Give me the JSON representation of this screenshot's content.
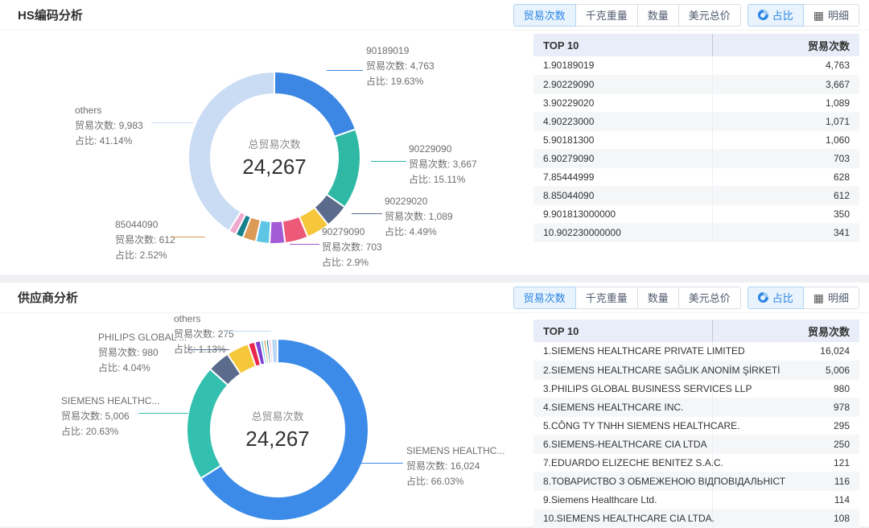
{
  "tabs": {
    "trade_count": "贸易次数",
    "kg_weight": "千克重量",
    "quantity": "数量",
    "usd_total": "美元总价",
    "share": "占比",
    "detail": "明细",
    "detail_icon_glyph": "▦"
  },
  "sections": [
    {
      "title": "HS编码分析",
      "center": {
        "label": "总贸易次数",
        "value": "24,267"
      },
      "chart_data": {
        "type": "pie",
        "title": "HS编码分析 贸易次数占比",
        "total": 24267,
        "slices": [
          {
            "name": "90189019",
            "value": 4763,
            "percent": "19.63%",
            "color": "#3d87e4"
          },
          {
            "name": "90229090",
            "value": 3667,
            "percent": "15.11%",
            "color": "#2fb8a4"
          },
          {
            "name": "90229020",
            "value": 1089,
            "percent": "4.49%",
            "color": "#5a6b8c"
          },
          {
            "name": "90223000",
            "value": 1071,
            "color": "#f6c73b"
          },
          {
            "name": "90181300",
            "value": 1060,
            "color": "#ed5a78"
          },
          {
            "name": "90279090",
            "value": 703,
            "percent": "2.9%",
            "color": "#a35bd6"
          },
          {
            "name": "85444999",
            "value": 628,
            "color": "#5fc5e5"
          },
          {
            "name": "85044090",
            "value": 612,
            "percent": "2.52%",
            "color": "#db9a55"
          },
          {
            "name": "901813000000",
            "value": 350,
            "color": "#17818d"
          },
          {
            "name": "902230000000",
            "value": 341,
            "color": "#f0a8ce"
          },
          {
            "name": "others",
            "value": 9983,
            "percent": "41.14%",
            "color": "#cadcf4"
          }
        ]
      },
      "callouts": [
        {
          "title": "90189019",
          "count": "贸易次数: 4,763",
          "share": "占比: 19.63%"
        },
        {
          "title": "others",
          "count": "贸易次数: 9,983",
          "share": "占比: 41.14%"
        },
        {
          "title": "90229090",
          "count": "贸易次数: 3,667",
          "share": "占比: 15.11%"
        },
        {
          "title": "90229020",
          "count": "贸易次数: 1,089",
          "share": "占比: 4.49%"
        },
        {
          "title": "90279090",
          "count": "贸易次数: 703",
          "share": "占比: 2.9%"
        },
        {
          "title": "85044090",
          "count": "贸易次数: 612",
          "share": "占比: 2.52%"
        }
      ],
      "table": {
        "headers": [
          "TOP 10",
          "贸易次数"
        ],
        "rows": [
          {
            "name": "1.90189019",
            "value": "4,763"
          },
          {
            "name": "2.90229090",
            "value": "3,667"
          },
          {
            "name": "3.90229020",
            "value": "1,089"
          },
          {
            "name": "4.90223000",
            "value": "1,071"
          },
          {
            "name": "5.90181300",
            "value": "1,060"
          },
          {
            "name": "6.90279090",
            "value": "703"
          },
          {
            "name": "7.85444999",
            "value": "628"
          },
          {
            "name": "8.85044090",
            "value": "612"
          },
          {
            "name": "9.901813000000",
            "value": "350"
          },
          {
            "name": "10.902230000000",
            "value": "341"
          }
        ]
      }
    },
    {
      "title": "供应商分析",
      "center": {
        "label": "总贸易次数",
        "value": "24,267"
      },
      "chart_data": {
        "type": "pie",
        "title": "供应商分析 贸易次数占比",
        "total": 24267,
        "slices": [
          {
            "name": "SIEMENS HEALTHCARE PRIVATE LIMITED",
            "value": 16024,
            "percent": "66.03%",
            "color": "#3d8be8"
          },
          {
            "name": "SIEMENS HEALTHCARE SAĞLIK ANONİM ŞİRKETİ",
            "value": 5006,
            "percent": "20.63%",
            "color": "#33c0ae"
          },
          {
            "name": "PHILIPS GLOBAL BUSINESS SERVICES LLP",
            "value": 980,
            "percent": "4.04%",
            "color": "#5a6b8c"
          },
          {
            "name": "SIEMENS HEALTHCARE INC.",
            "value": 978,
            "color": "#f6c73b"
          },
          {
            "name": "CÔNG TY TNHH SIEMENS HEALTHCARE.",
            "value": 295,
            "color": "#e8274b"
          },
          {
            "name": "SIEMENS-HEALTHCARE CIA LTDA",
            "value": 250,
            "color": "#7c3fd4"
          },
          {
            "name": "EDUARDO ELIZECHE BENITEZ S.A.C.",
            "value": 121,
            "color": "#5fc5e5"
          },
          {
            "name": "ТОВАРИСТВО З ОБМЕЖЕНОЮ ВІДПОВІДАЛЬНІСТ",
            "value": 116,
            "color": "#db9a55"
          },
          {
            "name": "Siemens Healthcare Ltd.",
            "value": 114,
            "color": "#17818d"
          },
          {
            "name": "SIEMENS HEALTHCARE CIA LTDA.",
            "value": 108,
            "color": "#f0a8ce"
          },
          {
            "name": "others",
            "value": 275,
            "percent": "1.13%",
            "color": "#bdd9f6"
          }
        ]
      },
      "callouts": [
        {
          "title": "others",
          "count": "贸易次数: 275",
          "share": "占比: 1.13%"
        },
        {
          "title": "PHILIPS GLOBAL ...",
          "count": "贸易次数: 980",
          "share": "占比: 4.04%"
        },
        {
          "title": "SIEMENS HEALTHC...",
          "count": "贸易次数: 5,006",
          "share": "占比: 20.63%"
        },
        {
          "title": "SIEMENS HEALTHC...",
          "count": "贸易次数: 16,024",
          "share": "占比: 66.03%"
        }
      ],
      "table": {
        "headers": [
          "TOP 10",
          "贸易次数"
        ],
        "rows": [
          {
            "name": "1.SIEMENS HEALTHCARE PRIVATE LIMITED",
            "value": "16,024"
          },
          {
            "name": "2.SIEMENS HEALTHCARE SAĞLIK ANONİM ŞİRKETİ",
            "value": "5,006"
          },
          {
            "name": "3.PHILIPS GLOBAL BUSINESS SERVICES LLP",
            "value": "980"
          },
          {
            "name": "4.SIEMENS HEALTHCARE INC.",
            "value": "978"
          },
          {
            "name": "5.CÔNG TY TNHH SIEMENS HEALTHCARE.",
            "value": "295"
          },
          {
            "name": "6.SIEMENS-HEALTHCARE CIA LTDA",
            "value": "250"
          },
          {
            "name": "7.EDUARDO ELIZECHE BENITEZ S.A.C.",
            "value": "121"
          },
          {
            "name": "8.ТОВАРИСТВО З ОБМЕЖЕНОЮ ВІДПОВІДАЛЬНІСТ",
            "value": "116"
          },
          {
            "name": "9.Siemens Healthcare Ltd.",
            "value": "114"
          },
          {
            "name": "10.SIEMENS HEALTHCARE CIA LTDA.",
            "value": "108"
          }
        ]
      }
    }
  ]
}
